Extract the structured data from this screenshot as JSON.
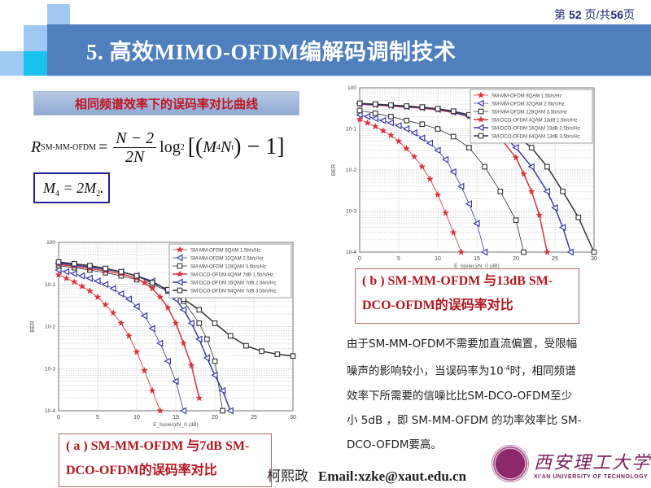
{
  "header": {
    "page_prefix": "第 ",
    "page_current": "52",
    "page_mid": " 页/共",
    "page_total": "56",
    "page_suffix": "页",
    "title": "5. 高效MIMO-OFDM编解码调制技术"
  },
  "section": {
    "tag": "相同频谱效率下的误码率对比曲线"
  },
  "formula": {
    "lhs": "R",
    "lhs_sub": "SM-MM-OFDM",
    "equals": "=",
    "numerator": "N − 2",
    "denominator": "2N",
    "log": "log",
    "log_sub": "2",
    "bracket_open": "[(",
    "m": "M",
    "m_sub": "4",
    "n": "N",
    "n_sub": "t",
    "tail": ") − 1]",
    "relation_m4": "M",
    "relation_m4_sub": "4",
    "relation_eq": " = 2M",
    "relation_m2_sub": "2",
    "relation_end": "."
  },
  "captions": {
    "a_line1": "( a ) SM-MM-OFDM 与7dB SM-",
    "a_line2": "DCO-OFDM的误码率对比",
    "b_line1": "( b ) SM-MM-OFDM 与13dB SM-",
    "b_line2": "DCO-OFDM的误码率对比"
  },
  "description": {
    "line1": "由于SM-MM-OFDM不需要加直流偏置，受限幅",
    "line2a": "噪声的影响较小，当误码率为10",
    "line2_sup": "-4",
    "line2b": "时，相同频谱",
    "line3": "效率下所需要的信噪比比SM-DCO-OFDM至少",
    "line4": "小 5dB ，即 SM-MM-OFDM 的功率效率比 SM-",
    "line5": "DCO-OFDM要高。"
  },
  "footer": {
    "author": "柯熙政",
    "email": "Email:xzke@xaut.edu.cn",
    "logo_cn": "西安理工大学",
    "logo_en": "XI'AN UNIVERSITY OF TECHNOLOGY"
  },
  "colors": {
    "title_bar": "#4f7fbc",
    "caption_text": "#b3161e",
    "series_red": "#d9323a",
    "series_blue": "#3a3aa8",
    "series_black": "#333333"
  },
  "chart_data": [
    {
      "id": "a",
      "type": "line",
      "title": "",
      "xlabel": "E_b(elec)/N_0 (dB)",
      "ylabel": "BER",
      "xlim": [
        0,
        30
      ],
      "ylim": [
        0.0001,
        1
      ],
      "yscale": "log",
      "xticks": [
        0,
        5,
        10,
        15,
        20,
        25,
        30
      ],
      "yticks": [
        "10^-4",
        "10^-3",
        "10^-2",
        "10^-1",
        "10^0"
      ],
      "grid": true,
      "legend_position": "upper right",
      "series": [
        {
          "name": "SM-MM-OFDM 8QAM 1.5b/s/Hz",
          "color": "#d9323a",
          "marker": "star",
          "x": [
            0,
            1,
            2,
            3,
            4,
            5,
            6,
            7,
            8,
            9,
            10,
            11,
            12,
            13
          ],
          "y": [
            0.17,
            0.14,
            0.115,
            0.09,
            0.07,
            0.05,
            0.033,
            0.021,
            0.012,
            0.006,
            0.0025,
            0.0009,
            0.0003,
            0.0001
          ]
        },
        {
          "name": "SM-MM-OFDM 32QAM 2.5b/s/Hz",
          "color": "#3a3aa8",
          "marker": "triangle-left",
          "x": [
            0,
            1,
            2,
            3,
            4,
            5,
            6,
            7,
            8,
            9,
            10,
            11,
            12,
            13,
            14,
            15,
            16
          ],
          "y": [
            0.22,
            0.2,
            0.18,
            0.16,
            0.14,
            0.12,
            0.1,
            0.08,
            0.06,
            0.045,
            0.03,
            0.018,
            0.009,
            0.004,
            0.0015,
            0.0005,
            0.0001
          ]
        },
        {
          "name": "SM-MM-OFDM 128QAM 3.5b/s/Hz",
          "color": "#333333",
          "marker": "square",
          "x": [
            0,
            2,
            4,
            6,
            8,
            10,
            12,
            14,
            16,
            18,
            19,
            20,
            21
          ],
          "y": [
            0.28,
            0.25,
            0.22,
            0.19,
            0.16,
            0.13,
            0.1,
            0.07,
            0.04,
            0.012,
            0.005,
            0.0015,
            0.0001
          ]
        },
        {
          "name": "SM-DCO-OFDM 4QAM 7dB 1.5b/s/Hz",
          "color": "#d9323a",
          "marker": "star",
          "x": [
            0,
            2,
            4,
            6,
            8,
            10,
            11,
            12,
            13,
            14,
            15,
            16,
            17,
            18
          ],
          "y": [
            0.3,
            0.27,
            0.24,
            0.21,
            0.18,
            0.14,
            0.11,
            0.08,
            0.05,
            0.028,
            0.012,
            0.004,
            0.0012,
            0.0002
          ]
        },
        {
          "name": "SM-DCO-OFDM 16QAM 7dB 2.5b/s/Hz",
          "color": "#3a3aa8",
          "marker": "triangle-left",
          "x": [
            0,
            2,
            4,
            6,
            8,
            10,
            12,
            14,
            15,
            16,
            17,
            18,
            19,
            20,
            21,
            22
          ],
          "y": [
            0.32,
            0.29,
            0.26,
            0.23,
            0.2,
            0.16,
            0.12,
            0.07,
            0.045,
            0.025,
            0.012,
            0.005,
            0.0018,
            0.0007,
            0.0003,
            0.0001
          ]
        },
        {
          "name": "SM-DCO-OFDM 64QAM 7dB 3.5b/s/Hz",
          "color": "#333333",
          "marker": "square",
          "x": [
            0,
            2,
            4,
            6,
            8,
            10,
            12,
            14,
            16,
            18,
            20,
            22,
            24,
            26,
            28,
            30
          ],
          "y": [
            0.34,
            0.31,
            0.28,
            0.24,
            0.2,
            0.16,
            0.11,
            0.075,
            0.045,
            0.025,
            0.012,
            0.006,
            0.0035,
            0.0026,
            0.0022,
            0.002
          ]
        }
      ]
    },
    {
      "id": "b",
      "type": "line",
      "title": "",
      "xlabel": "E_b(elec)/N_0 (dB)",
      "ylabel": "BER",
      "xlim": [
        0,
        30
      ],
      "ylim": [
        0.0001,
        1
      ],
      "yscale": "log",
      "xticks": [
        0,
        5,
        10,
        15,
        20,
        25,
        30
      ],
      "yticks": [
        "10^-4",
        "10^-3",
        "10^-2",
        "10^-1",
        "10^0"
      ],
      "grid": true,
      "legend_position": "upper right",
      "series": [
        {
          "name": "SM-MM-OFDM 8QAM 1.5b/s/Hz",
          "color": "#d9323a",
          "marker": "star",
          "x": [
            0,
            1,
            2,
            3,
            4,
            5,
            6,
            7,
            8,
            9,
            10,
            11,
            12,
            13
          ],
          "y": [
            0.17,
            0.14,
            0.115,
            0.09,
            0.07,
            0.05,
            0.033,
            0.021,
            0.012,
            0.006,
            0.0025,
            0.0009,
            0.0003,
            0.0001
          ]
        },
        {
          "name": "SM-MM-OFDM 32QAM 2.5b/s/Hz",
          "color": "#3a3aa8",
          "marker": "triangle-left",
          "x": [
            0,
            1,
            2,
            3,
            4,
            5,
            6,
            7,
            8,
            9,
            10,
            11,
            12,
            13,
            14,
            15,
            16
          ],
          "y": [
            0.22,
            0.2,
            0.18,
            0.16,
            0.14,
            0.12,
            0.1,
            0.08,
            0.06,
            0.045,
            0.03,
            0.018,
            0.009,
            0.004,
            0.0015,
            0.0005,
            0.0001
          ]
        },
        {
          "name": "SM-MM-OFDM 128QAM 3.5b/s/Hz",
          "color": "#333333",
          "marker": "square",
          "x": [
            0,
            2,
            4,
            6,
            8,
            10,
            12,
            14,
            16,
            18,
            20,
            21
          ],
          "y": [
            0.28,
            0.24,
            0.2,
            0.16,
            0.13,
            0.1,
            0.065,
            0.035,
            0.012,
            0.003,
            0.0006,
            0.0001
          ]
        },
        {
          "name": "SM-DCO-OFDM 4QAM 13dB 1.5b/s/Hz",
          "color": "#d9323a",
          "marker": "star",
          "x": [
            0,
            2,
            4,
            6,
            8,
            10,
            12,
            14,
            16,
            18,
            20,
            21,
            22,
            23,
            24
          ],
          "y": [
            0.4,
            0.38,
            0.36,
            0.34,
            0.32,
            0.29,
            0.25,
            0.2,
            0.13,
            0.06,
            0.02,
            0.008,
            0.003,
            0.0008,
            0.0001
          ]
        },
        {
          "name": "SM-DCO-OFDM 16QAM 13dB 2.5b/s/Hz",
          "color": "#3a3aa8",
          "marker": "triangle-left",
          "x": [
            0,
            2,
            4,
            6,
            8,
            10,
            12,
            14,
            16,
            18,
            20,
            22,
            24,
            25,
            26,
            27
          ],
          "y": [
            0.41,
            0.39,
            0.37,
            0.35,
            0.33,
            0.3,
            0.26,
            0.2,
            0.14,
            0.08,
            0.035,
            0.012,
            0.003,
            0.0012,
            0.0004,
            0.0001
          ]
        },
        {
          "name": "SM-DCO-OFDM 64QAM 13dB 3.5b/s/Hz",
          "color": "#333333",
          "marker": "square",
          "x": [
            0,
            2,
            4,
            6,
            8,
            10,
            12,
            14,
            16,
            18,
            20,
            22,
            24,
            26,
            28,
            30
          ],
          "y": [
            0.42,
            0.4,
            0.38,
            0.36,
            0.34,
            0.31,
            0.27,
            0.22,
            0.17,
            0.12,
            0.07,
            0.035,
            0.012,
            0.003,
            0.0007,
            0.0001
          ]
        }
      ]
    }
  ]
}
